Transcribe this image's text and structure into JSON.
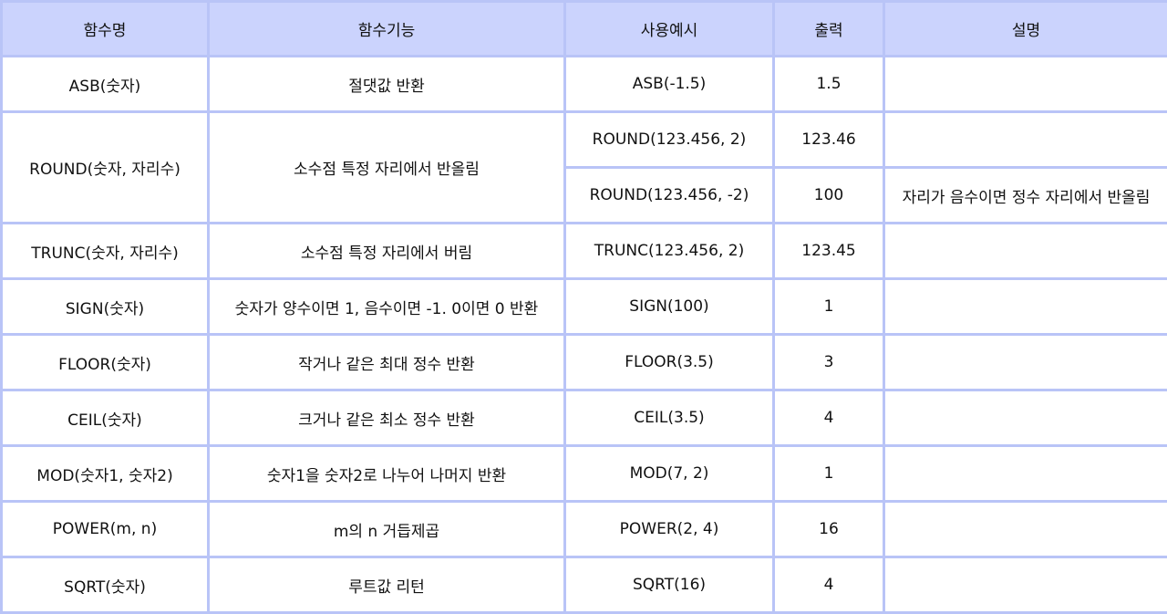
{
  "headers": [
    "함수명",
    "함수기능",
    "사용예시",
    "출력",
    "설명"
  ],
  "rows": [
    {
      "name": "ASB(숫자)",
      "function": "절댓값 반환",
      "example": "ASB(-1.5)",
      "output": "1.5",
      "note": ""
    },
    {
      "name": "ROUND(숫자, 자리수)",
      "function": "소수점 특정 자리에서 반올림",
      "example": "ROUND(123.456, 2)",
      "output": "123.46",
      "note": ""
    },
    {
      "example": "ROUND(123.456, -2)",
      "output": "100",
      "note": "자리가 음수이면 정수 자리에서 반올림"
    },
    {
      "name": "TRUNC(숫자, 자리수)",
      "function": "소수점 특정 자리에서 버림",
      "example": "TRUNC(123.456, 2)",
      "output": "123.45",
      "note": ""
    },
    {
      "name": "SIGN(숫자)",
      "function": "숫자가 양수이면 1, 음수이면 -1. 0이면 0 반환",
      "example": "SIGN(100)",
      "output": "1",
      "note": ""
    },
    {
      "name": "FLOOR(숫자)",
      "function": "작거나 같은 최대 정수 반환",
      "example": "FLOOR(3.5)",
      "output": "3",
      "note": ""
    },
    {
      "name": "CEIL(숫자)",
      "function": "크거나 같은 최소 정수 반환",
      "example": "CEIL(3.5)",
      "output": "4",
      "note": ""
    },
    {
      "name": "MOD(숫자1, 숫자2)",
      "function": "숫자1을 숫자2로 나누어 나머지 반환",
      "example": "MOD(7, 2)",
      "output": "1",
      "note": ""
    },
    {
      "name": "POWER(m, n)",
      "function": "m의 n 거듭제곱",
      "example": "POWER(2, 4)",
      "output": "16",
      "note": ""
    },
    {
      "name": "SQRT(숫자)",
      "function": "루트값 리턴",
      "example": "SQRT(16)",
      "output": "4",
      "note": ""
    }
  ]
}
